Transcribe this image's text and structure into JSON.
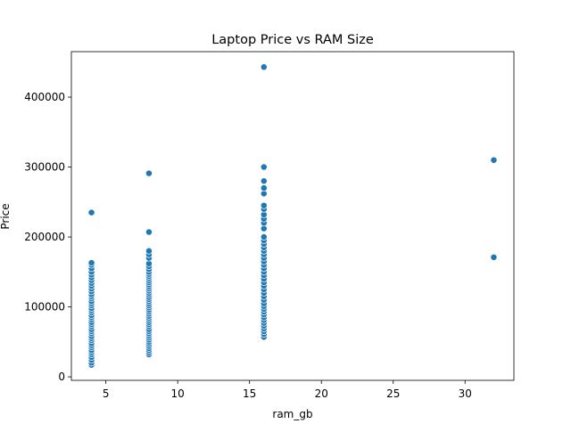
{
  "chart_data": {
    "type": "scatter",
    "title": "Laptop Price vs RAM Size",
    "xlabel": "ram_gb",
    "ylabel": "Price",
    "xlim": [
      2.6,
      33.4
    ],
    "ylim": [
      -5000,
      465000
    ],
    "xticks": [
      5,
      10,
      15,
      20,
      25,
      30
    ],
    "yticks": [
      0,
      100000,
      200000,
      300000,
      400000
    ],
    "grid": false,
    "legend": "none",
    "point_color": "#1f77b4",
    "series": [
      {
        "points": [
          [
            4,
            17000
          ],
          [
            4,
            20000
          ],
          [
            4,
            24000
          ],
          [
            4,
            28000
          ],
          [
            4,
            32000
          ],
          [
            4,
            35000
          ],
          [
            4,
            38000
          ],
          [
            4,
            42000
          ],
          [
            4,
            45000
          ],
          [
            4,
            48000
          ],
          [
            4,
            52000
          ],
          [
            4,
            55000
          ],
          [
            4,
            58000
          ],
          [
            4,
            62000
          ],
          [
            4,
            65000
          ],
          [
            4,
            68000
          ],
          [
            4,
            72000
          ],
          [
            4,
            75000
          ],
          [
            4,
            78000
          ],
          [
            4,
            82000
          ],
          [
            4,
            85000
          ],
          [
            4,
            88000
          ],
          [
            4,
            92000
          ],
          [
            4,
            95000
          ],
          [
            4,
            98000
          ],
          [
            4,
            102000
          ],
          [
            4,
            105000
          ],
          [
            4,
            108000
          ],
          [
            4,
            112000
          ],
          [
            4,
            115000
          ],
          [
            4,
            118000
          ],
          [
            4,
            122000
          ],
          [
            4,
            126000
          ],
          [
            4,
            130000
          ],
          [
            4,
            134000
          ],
          [
            4,
            138000
          ],
          [
            4,
            142000
          ],
          [
            4,
            146000
          ],
          [
            4,
            150000
          ],
          [
            4,
            155000
          ],
          [
            4,
            160000
          ],
          [
            4,
            163000
          ],
          [
            4,
            235000
          ],
          [
            8,
            32000
          ],
          [
            8,
            35000
          ],
          [
            8,
            38000
          ],
          [
            8,
            41000
          ],
          [
            8,
            44000
          ],
          [
            8,
            47000
          ],
          [
            8,
            50000
          ],
          [
            8,
            53000
          ],
          [
            8,
            56000
          ],
          [
            8,
            59000
          ],
          [
            8,
            62000
          ],
          [
            8,
            65000
          ],
          [
            8,
            68000
          ],
          [
            8,
            72000
          ],
          [
            8,
            75000
          ],
          [
            8,
            78000
          ],
          [
            8,
            81000
          ],
          [
            8,
            84000
          ],
          [
            8,
            87000
          ],
          [
            8,
            90000
          ],
          [
            8,
            93000
          ],
          [
            8,
            96000
          ],
          [
            8,
            99000
          ],
          [
            8,
            102000
          ],
          [
            8,
            105000
          ],
          [
            8,
            108000
          ],
          [
            8,
            111000
          ],
          [
            8,
            114000
          ],
          [
            8,
            117000
          ],
          [
            8,
            120000
          ],
          [
            8,
            123000
          ],
          [
            8,
            126000
          ],
          [
            8,
            129000
          ],
          [
            8,
            132000
          ],
          [
            8,
            135000
          ],
          [
            8,
            138000
          ],
          [
            8,
            141000
          ],
          [
            8,
            144000
          ],
          [
            8,
            147000
          ],
          [
            8,
            150000
          ],
          [
            8,
            154000
          ],
          [
            8,
            158000
          ],
          [
            8,
            162000
          ],
          [
            8,
            170000
          ],
          [
            8,
            175000
          ],
          [
            8,
            180000
          ],
          [
            8,
            207000
          ],
          [
            8,
            291000
          ],
          [
            16,
            57000
          ],
          [
            16,
            61000
          ],
          [
            16,
            65000
          ],
          [
            16,
            69000
          ],
          [
            16,
            73000
          ],
          [
            16,
            77000
          ],
          [
            16,
            81000
          ],
          [
            16,
            85000
          ],
          [
            16,
            89000
          ],
          [
            16,
            93000
          ],
          [
            16,
            97000
          ],
          [
            16,
            101000
          ],
          [
            16,
            105000
          ],
          [
            16,
            110000
          ],
          [
            16,
            115000
          ],
          [
            16,
            120000
          ],
          [
            16,
            125000
          ],
          [
            16,
            130000
          ],
          [
            16,
            135000
          ],
          [
            16,
            140000
          ],
          [
            16,
            145000
          ],
          [
            16,
            150000
          ],
          [
            16,
            155000
          ],
          [
            16,
            160000
          ],
          [
            16,
            165000
          ],
          [
            16,
            170000
          ],
          [
            16,
            175000
          ],
          [
            16,
            180000
          ],
          [
            16,
            185000
          ],
          [
            16,
            190000
          ],
          [
            16,
            195000
          ],
          [
            16,
            200000
          ],
          [
            16,
            212000
          ],
          [
            16,
            220000
          ],
          [
            16,
            226000
          ],
          [
            16,
            232000
          ],
          [
            16,
            240000
          ],
          [
            16,
            245000
          ],
          [
            16,
            262000
          ],
          [
            16,
            270000
          ],
          [
            16,
            280000
          ],
          [
            16,
            300000
          ],
          [
            16,
            443000
          ],
          [
            32,
            171000
          ],
          [
            32,
            310000
          ]
        ]
      }
    ]
  }
}
